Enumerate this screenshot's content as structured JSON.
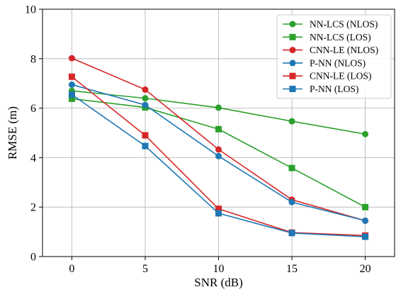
{
  "chart_data": {
    "type": "line",
    "xlabel": "SNR (dB)",
    "ylabel": "RMSE (m)",
    "x": [
      0,
      5,
      10,
      15,
      20
    ],
    "xlim": [
      -2,
      22
    ],
    "ylim": [
      0,
      10
    ],
    "xticks": [
      0,
      5,
      10,
      15,
      20
    ],
    "yticks": [
      0,
      2,
      4,
      6,
      8,
      10
    ],
    "grid": true,
    "legend_position": "top-right",
    "series": [
      {
        "name": "NN-LCS (NLOS)",
        "values": [
          6.7,
          6.4,
          6.02,
          5.47,
          4.95
        ],
        "color": "#2ca02c",
        "marker": "circle"
      },
      {
        "name": "NN-LCS (LOS)",
        "values": [
          6.38,
          6.03,
          5.15,
          3.58,
          2.0
        ],
        "color": "#2ca02c",
        "marker": "square"
      },
      {
        "name": "CNN-LE (NLOS)",
        "values": [
          8.02,
          6.75,
          4.33,
          2.3,
          1.45
        ],
        "color": "#d62728",
        "marker": "circle"
      },
      {
        "name": "P-NN (NLOS)",
        "values": [
          6.95,
          6.13,
          4.06,
          2.2,
          1.45
        ],
        "color": "#1f77b4",
        "marker": "circle"
      },
      {
        "name": "CNN-LE (LOS)",
        "values": [
          7.27,
          4.9,
          1.93,
          0.97,
          0.85
        ],
        "color": "#d62728",
        "marker": "square"
      },
      {
        "name": "P-NN (LOS)",
        "values": [
          6.55,
          4.47,
          1.75,
          0.95,
          0.8
        ],
        "color": "#1f77b4",
        "marker": "square"
      }
    ]
  }
}
